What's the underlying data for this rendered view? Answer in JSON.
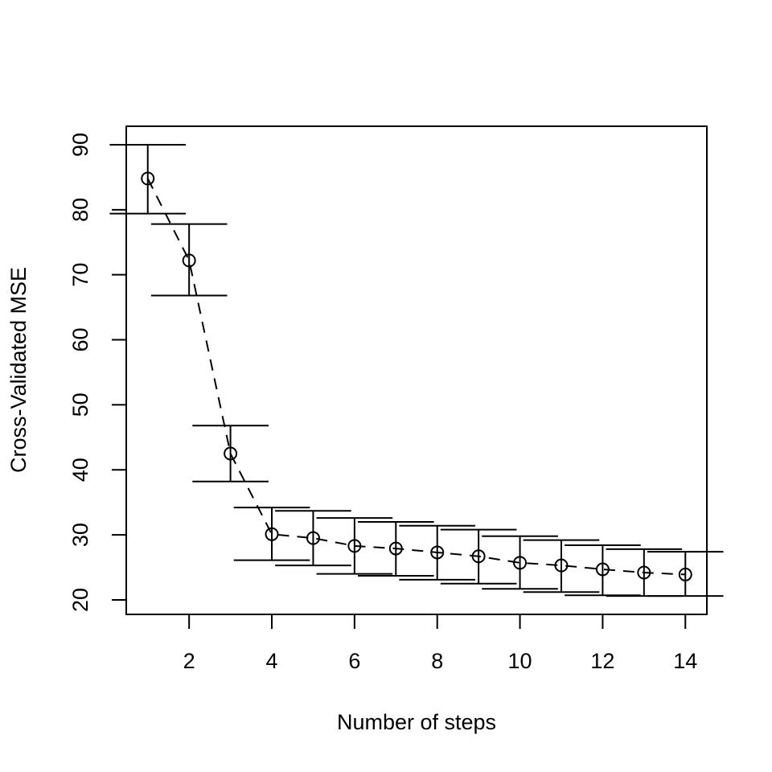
{
  "chart_data": {
    "type": "errorbar",
    "x_label": "Number of steps",
    "y_label": "Cross-Validated MSE",
    "x": [
      1,
      2,
      3,
      4,
      5,
      6,
      7,
      8,
      9,
      10,
      11,
      12,
      13,
      14
    ],
    "values": [
      84.8,
      72.2,
      42.5,
      30.1,
      29.5,
      28.3,
      27.9,
      27.3,
      26.7,
      25.7,
      25.3,
      24.7,
      24.2,
      23.9
    ],
    "upper": [
      90.0,
      77.8,
      46.8,
      34.2,
      33.7,
      32.6,
      32.0,
      31.4,
      30.8,
      29.8,
      29.2,
      28.4,
      27.8,
      27.4
    ],
    "lower": [
      79.4,
      66.8,
      38.2,
      26.1,
      25.3,
      24.0,
      23.7,
      23.1,
      22.5,
      21.7,
      21.2,
      20.7,
      20.6,
      20.6
    ],
    "color": "#000000",
    "xlim": [
      0.48,
      14.52
    ],
    "ylim": [
      17.77,
      92.84
    ],
    "xticks": [
      2,
      4,
      6,
      8,
      10,
      12,
      14
    ],
    "yticks": [
      20,
      30,
      40,
      50,
      60,
      70,
      80,
      90
    ]
  }
}
